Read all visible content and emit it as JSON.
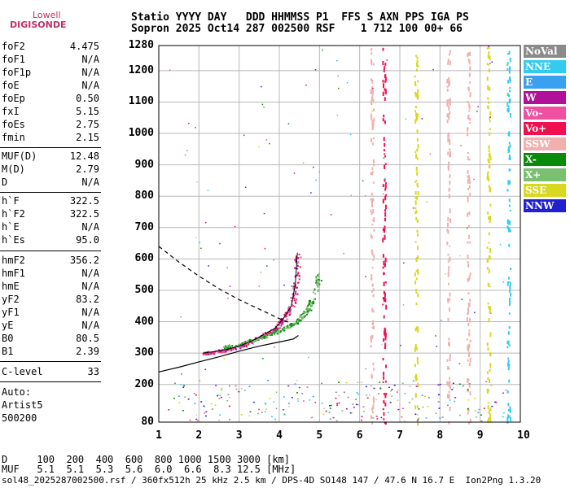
{
  "logo": {
    "top": "Lowell",
    "bottom": "DIGISONDE"
  },
  "header": {
    "line1": "Statio YYYY DAY   DDD HHMMSS P1  FFS S AXN PPS IGA PS",
    "line2": "Sopron 2025 Oct14 287 002500 RSF    1 712 100 00+ 66"
  },
  "params_group1": [
    {
      "key": "foF2",
      "value": "4.475"
    },
    {
      "key": "foF1",
      "value": "N/A"
    },
    {
      "key": "foF1p",
      "value": "N/A"
    },
    {
      "key": "foE",
      "value": "N/A"
    },
    {
      "key": "foEp",
      "value": "0.50"
    },
    {
      "key": "fxI",
      "value": "5.15"
    },
    {
      "key": "foEs",
      "value": "2.75"
    },
    {
      "key": "fmin",
      "value": "2.15"
    }
  ],
  "params_group2": [
    {
      "key": "MUF(D)",
      "value": "12.48"
    },
    {
      "key": "M(D)",
      "value": "2.79"
    },
    {
      "key": "D",
      "value": "N/A"
    }
  ],
  "params_group3": [
    {
      "key": "h`F",
      "value": "322.5"
    },
    {
      "key": "h`F2",
      "value": "322.5"
    },
    {
      "key": "h`E",
      "value": "N/A"
    },
    {
      "key": "h`Es",
      "value": "95.0"
    }
  ],
  "params_group4": [
    {
      "key": "hmF2",
      "value": "356.2"
    },
    {
      "key": "hmF1",
      "value": "N/A"
    },
    {
      "key": "hmE",
      "value": "N/A"
    },
    {
      "key": "yF2",
      "value": "83.2"
    },
    {
      "key": "yF1",
      "value": "N/A"
    },
    {
      "key": "yE",
      "value": "N/A"
    },
    {
      "key": "B0",
      "value": "80.5"
    },
    {
      "key": "B1",
      "value": "2.39"
    }
  ],
  "clevel": {
    "key": "C-level",
    "value": "33"
  },
  "auto": {
    "line1": "Auto:",
    "line2": "Artist5",
    "line3": "500200"
  },
  "legend": [
    {
      "label": "NoVal",
      "color": "#8a8a8a"
    },
    {
      "label": "NNE",
      "color": "#33ccee"
    },
    {
      "label": "E",
      "color": "#3aa0f0"
    },
    {
      "label": "W",
      "color": "#b0109a"
    },
    {
      "label": "Vo-",
      "color": "#f050a0"
    },
    {
      "label": "Vo+",
      "color": "#f01050"
    },
    {
      "label": "SSW",
      "color": "#f0b0b0"
    },
    {
      "label": "X-",
      "color": "#0a8a0a"
    },
    {
      "label": "X+",
      "color": "#7ac070"
    },
    {
      "label": "SSE",
      "color": "#d8d820"
    },
    {
      "label": "NNW",
      "color": "#2020d0"
    }
  ],
  "muf_table": {
    "line1": "D     100  200  400  600  800 1000 1500 3000 [km]",
    "line2": "MUF   5.1  5.1  5.3  5.6  6.0  6.6  8.3 12.5 [MHz]"
  },
  "footer": "sol48_2025287002500.rsf / 360fx512h 25 kHz 2.5 km / DPS-4D SO148 147 / 47.6 N 16.7 E  Ion2Png 1.3.20",
  "chart_data": {
    "type": "scatter",
    "x_range": [
      1,
      10
    ],
    "y_range": [
      80,
      1280
    ],
    "x_ticks": [
      "1",
      "2",
      "3",
      "4",
      "5",
      "6",
      "7",
      "8",
      "9",
      "10"
    ],
    "y_ticks": [
      "1280",
      "1200",
      "1100",
      "1000",
      "900",
      "800",
      "700",
      "600",
      "500",
      "400",
      "300",
      "200",
      "80"
    ],
    "y_tick_values": [
      1280,
      1200,
      1100,
      1000,
      900,
      800,
      700,
      600,
      500,
      400,
      300,
      200,
      80
    ],
    "grid": true,
    "profile_solid": {
      "x": [
        1.0,
        1.5,
        2.0,
        2.5,
        3.0,
        3.5,
        3.8,
        4.1,
        4.35,
        4.475
      ],
      "y": [
        240,
        255,
        272,
        288,
        306,
        322,
        330,
        338,
        345,
        356
      ]
    },
    "profile_dashed_upper": {
      "x": [
        1.0,
        1.5,
        2.0,
        2.5,
        3.0,
        3.5,
        4.0,
        4.3
      ],
      "y": [
        640,
        590,
        545,
        505,
        470,
        440,
        410,
        395
      ]
    },
    "o_trace": {
      "x": [
        2.1,
        2.4,
        2.7,
        3.0,
        3.3,
        3.6,
        3.9,
        4.1,
        4.3,
        4.4,
        4.45
      ],
      "y": [
        300,
        305,
        312,
        322,
        338,
        358,
        380,
        410,
        450,
        520,
        620
      ]
    },
    "x_trace": {
      "x": [
        2.6,
        3.0,
        3.4,
        3.8,
        4.2,
        4.5,
        4.7,
        4.85,
        5.0
      ],
      "y": [
        320,
        330,
        345,
        362,
        385,
        410,
        440,
        480,
        560
      ]
    }
  }
}
